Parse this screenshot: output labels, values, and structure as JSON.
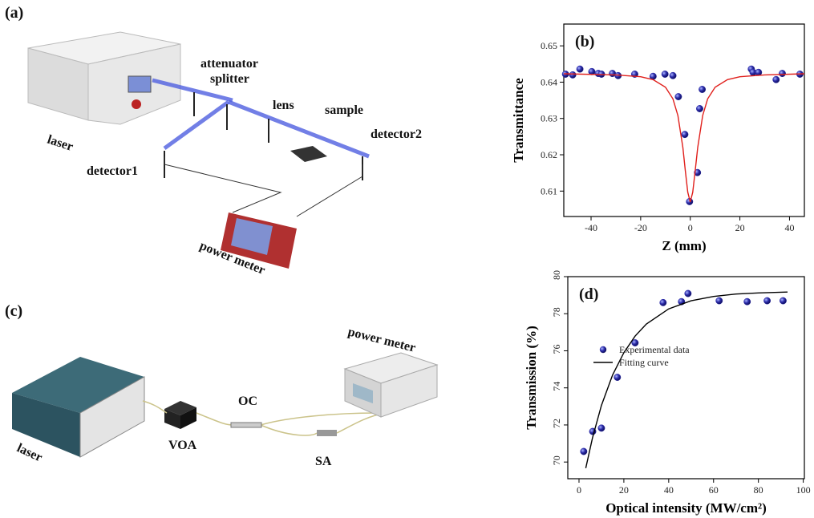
{
  "panels": {
    "a": {
      "label": "(a)",
      "laser": "laser",
      "attenuator": "attenuator",
      "splitter": "splitter",
      "lens": "lens",
      "sample": "sample",
      "detector1": "detector1",
      "detector2": "detector2",
      "power_meter": "power meter"
    },
    "c": {
      "label": "(c)",
      "laser": "laser",
      "voa": "VOA",
      "oc": "OC",
      "sa": "SA",
      "power_meter": "power meter"
    }
  },
  "chart_data": [
    {
      "type": "scatter",
      "panel_label": "(b)",
      "xlabel": "Z (mm)",
      "ylabel": "Transmittance",
      "xlim": [
        -51,
        46
      ],
      "ylim": [
        0.603,
        0.656
      ],
      "xticks": [
        -40,
        -20,
        0,
        20,
        40
      ],
      "yticks": [
        0.61,
        0.62,
        0.63,
        0.64,
        0.65
      ],
      "series": [
        {
          "mode": "markers",
          "color": "#2a2aa8",
          "x": [
            -50.3,
            -47.4,
            -44.5,
            -39.7,
            -37.1,
            -35.8,
            -31.4,
            -29.1,
            -22.4,
            -15,
            -10.2,
            -7,
            -4.8,
            -2.2,
            -0.3,
            2.9,
            3.8,
            4.8,
            24.6,
            25.3,
            27.5,
            34.6,
            37.1,
            44.2
          ],
          "values": [
            0.6422,
            0.642,
            0.6436,
            0.6429,
            0.6424,
            0.6422,
            0.6424,
            0.6418,
            0.6422,
            0.6416,
            0.6422,
            0.6418,
            0.636,
            0.6256,
            0.6071,
            0.6151,
            0.6327,
            0.638,
            0.6436,
            0.6427,
            0.6427,
            0.6407,
            0.6424,
            0.6422
          ]
        },
        {
          "mode": "line",
          "color": "#e0201c",
          "x": [
            -51,
            -30,
            -20,
            -15,
            -10,
            -7,
            -5,
            -3,
            -2,
            -1,
            0,
            1,
            2,
            3,
            5,
            7,
            10,
            15,
            20,
            30,
            46
          ],
          "values": [
            0.6423,
            0.642,
            0.6415,
            0.6407,
            0.6386,
            0.6354,
            0.6308,
            0.622,
            0.6157,
            0.6097,
            0.607,
            0.6097,
            0.6157,
            0.622,
            0.6308,
            0.6354,
            0.6386,
            0.6407,
            0.6415,
            0.642,
            0.6423
          ]
        }
      ]
    },
    {
      "type": "scatter",
      "panel_label": "(d)",
      "xlabel": "Optical intensity (MW/cm²)",
      "ylabel": "Transmission (%)",
      "xlim": [
        -5,
        100.5
      ],
      "ylim": [
        69.1,
        80
      ],
      "xticks": [
        0,
        20,
        40,
        60,
        80,
        100
      ],
      "yticks": [
        70,
        72,
        74,
        76,
        78,
        80
      ],
      "series": [
        {
          "name": "Experimental data",
          "mode": "markers",
          "color": "#2a2aa8",
          "x": [
            2.1,
            6.1,
            10,
            17.1,
            25,
            37.5,
            45.7,
            48.6,
            62.5,
            75,
            83.9,
            91
          ],
          "values": [
            70.57,
            71.65,
            71.83,
            74.57,
            76.43,
            78.6,
            78.65,
            79.09,
            78.7,
            78.65,
            78.7,
            78.7
          ]
        },
        {
          "name": "Fitting curve",
          "mode": "line",
          "color": "#000000",
          "x": [
            3,
            6,
            10,
            15,
            20,
            25,
            30,
            40,
            50,
            60,
            70,
            80,
            93
          ],
          "values": [
            69.67,
            71.3,
            73.05,
            74.7,
            75.9,
            76.79,
            77.44,
            78.26,
            78.7,
            78.93,
            79.06,
            79.12,
            79.17
          ]
        }
      ]
    }
  ]
}
